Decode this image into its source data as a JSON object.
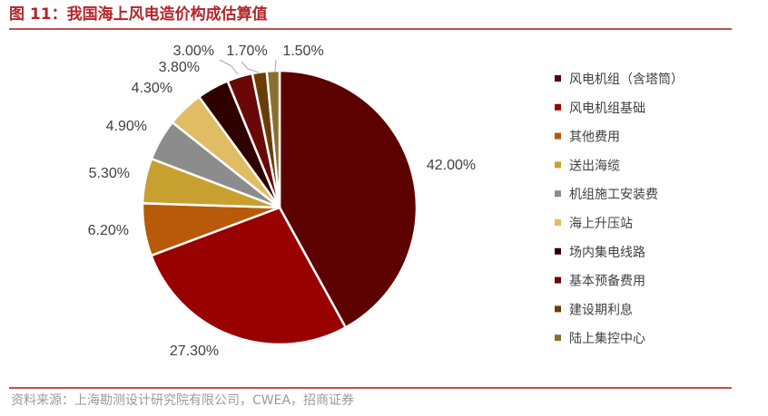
{
  "title": "图 11：我国海上风电造价构成估算值",
  "source": "资料来源：上海勘测设计研究院有限公司，CWEA，招商证券",
  "chart_data": {
    "type": "pie",
    "title": "",
    "legend_position": "right",
    "slices": [
      {
        "name": "风电机组（含塔筒）",
        "value": 42.0,
        "label": "42.00%",
        "color": "#5c0000"
      },
      {
        "name": "风电机组基础",
        "value": 27.3,
        "label": "27.30%",
        "color": "#990000"
      },
      {
        "name": "其他费用",
        "value": 6.2,
        "label": "6.20%",
        "color": "#b85a0a"
      },
      {
        "name": "送出海缆",
        "value": 5.3,
        "label": "5.30%",
        "color": "#c8a030"
      },
      {
        "name": "机组施工安装费",
        "value": 4.9,
        "label": "4.90%",
        "color": "#8c8c8c"
      },
      {
        "name": "海上升压站",
        "value": 4.3,
        "label": "4.30%",
        "color": "#e0bc62"
      },
      {
        "name": "场内集电线路",
        "value": 3.8,
        "label": "3.80%",
        "color": "#2e0000"
      },
      {
        "name": "基本预备费用",
        "value": 3.0,
        "label": "3.00%",
        "color": "#6a0808"
      },
      {
        "name": "建设期利息",
        "value": 1.7,
        "label": "1.70%",
        "color": "#6b3d05"
      },
      {
        "name": "陆上集控中心",
        "value": 1.5,
        "label": "1.50%",
        "color": "#8a7030"
      }
    ]
  }
}
